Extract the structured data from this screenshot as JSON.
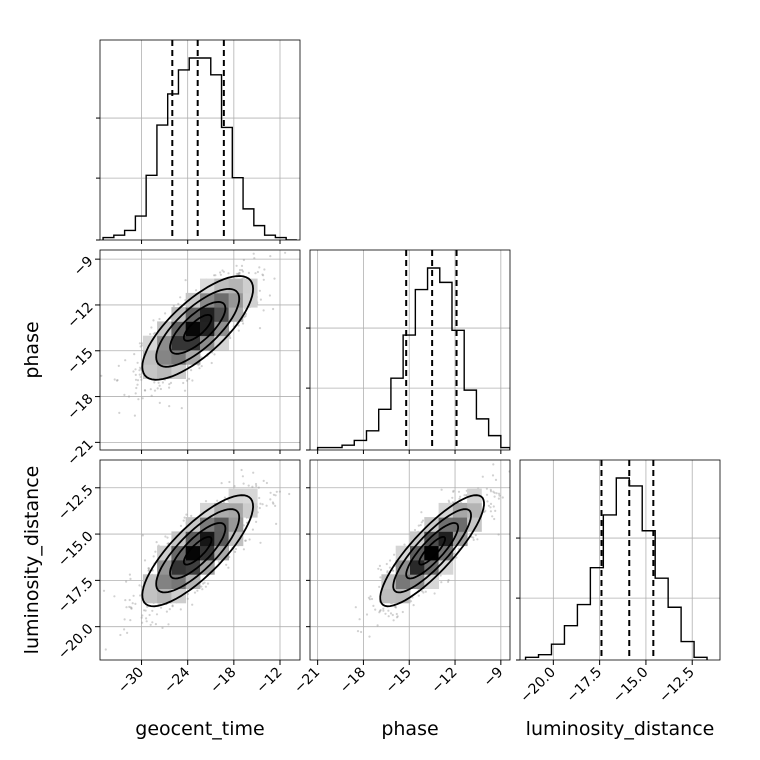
{
  "chart_data": {
    "type": "corner",
    "parameters": [
      "geocent_time",
      "phase",
      "luminosity_distance"
    ],
    "quantile_lines": {
      "geocent_time": [
        -26.0,
        -22.7,
        -19.3
      ],
      "phase": [
        -15.2,
        -13.5,
        -11.9
      ],
      "luminosity_distance": [
        -17.4,
        -15.9,
        -14.6
      ]
    },
    "ticks": {
      "geocent_time": {
        "values": [
          -30,
          -24,
          -18,
          -12
        ],
        "labels": [
          "−30",
          "−24",
          "−18",
          "−12"
        ],
        "range": [
          -35.4,
          -9.4
        ]
      },
      "phase": {
        "values": [
          -21,
          -18,
          -15,
          -12,
          -9
        ],
        "labels": [
          "−21",
          "−18",
          "−15",
          "−12",
          "−9"
        ],
        "range": [
          -21.5,
          -8.4
        ]
      },
      "luminosity_distance": {
        "values": [
          -20.0,
          -17.5,
          -15.0,
          -12.5
        ],
        "labels": [
          "−20.0",
          "−17.5",
          "−15.0",
          "−12.5"
        ],
        "range": [
          -21.8,
          -11.0
        ]
      }
    },
    "histograms": {
      "geocent_time": {
        "bin_edges": [
          -35.0,
          -33.6,
          -32.2,
          -30.8,
          -29.4,
          -28.0,
          -26.6,
          -25.2,
          -23.8,
          -22.4,
          -21.0,
          -19.6,
          -18.2,
          -16.8,
          -15.4,
          -14.0,
          -12.6,
          -11.2,
          -9.8
        ],
        "counts": [
          1,
          2,
          4,
          10,
          27,
          48,
          61,
          71,
          76,
          76,
          69,
          47,
          26,
          13,
          6,
          2,
          1,
          0
        ]
      },
      "phase": {
        "bin_edges": [
          -21.0,
          -20.2,
          -19.4,
          -18.6,
          -17.8,
          -17.0,
          -16.2,
          -15.4,
          -14.6,
          -13.8,
          -13.0,
          -12.2,
          -11.4,
          -10.6,
          -9.8,
          -9.0,
          -8.4
        ],
        "counts": [
          1,
          1,
          2,
          4,
          8,
          17,
          30,
          48,
          67,
          76,
          70,
          50,
          25,
          13,
          6,
          1
        ]
      },
      "luminosity_distance": {
        "bin_edges": [
          -21.5,
          -20.8,
          -20.1,
          -19.4,
          -18.7,
          -18.0,
          -17.3,
          -16.6,
          -15.9,
          -15.2,
          -14.5,
          -13.8,
          -13.1,
          -12.4,
          -11.7
        ],
        "counts": [
          1,
          2,
          6,
          13,
          21,
          35,
          55,
          69,
          66,
          49,
          31,
          20,
          7,
          1
        ]
      }
    },
    "pairs": [
      {
        "x": "geocent_time",
        "y": "phase",
        "mean": [
          -22.7,
          -13.5
        ],
        "sigma": [
          3.6,
          1.7
        ],
        "rho": 0.75,
        "contour_levels": [
          "0.5 sigma",
          "1.0 sigma",
          "1.5 sigma",
          "2.0 sigma"
        ]
      },
      {
        "x": "geocent_time",
        "y": "luminosity_distance",
        "mean": [
          -22.7,
          -15.9
        ],
        "sigma": [
          3.6,
          1.5
        ],
        "rho": 0.8,
        "contour_levels": [
          "0.5 sigma",
          "1.0 sigma",
          "1.5 sigma",
          "2.0 sigma"
        ]
      },
      {
        "x": "phase",
        "y": "luminosity_distance",
        "mean": [
          -13.5,
          -15.9
        ],
        "sigma": [
          1.7,
          1.5
        ],
        "rho": 0.85,
        "contour_levels": [
          "0.5 sigma",
          "1.0 sigma",
          "1.5 sigma",
          "2.0 sigma"
        ]
      }
    ],
    "grid": true,
    "colors": {
      "ink": "#000000",
      "grid": "#b0b0b0",
      "scatter": "#9a9a9a"
    }
  }
}
